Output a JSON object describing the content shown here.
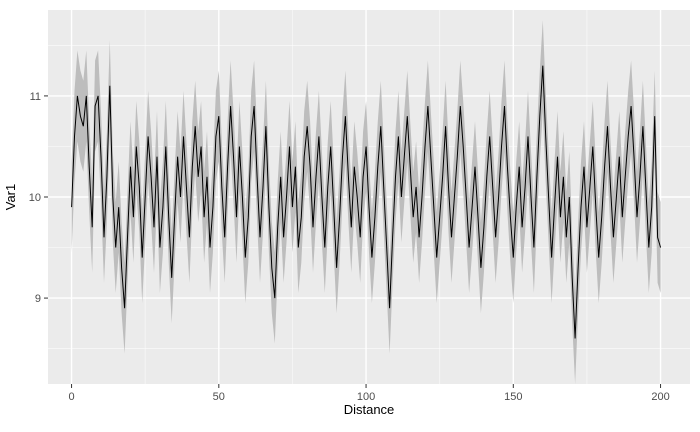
{
  "chart_data": {
    "type": "line",
    "title": "",
    "xlabel": "Distance",
    "ylabel": "Var1",
    "xlim": [
      -8,
      210
    ],
    "ylim": [
      8.15,
      11.85
    ],
    "x_ticks": [
      0,
      50,
      100,
      150,
      200
    ],
    "y_ticks": [
      9,
      10,
      11
    ],
    "x_minor_ticks": [
      25,
      75,
      125,
      175
    ],
    "y_minor_ticks": [
      8.5,
      9.5,
      10.5,
      11.5
    ],
    "x_start": 0,
    "x_step": 1,
    "ribbon_halfwidth": 0.45,
    "legend": "none",
    "grid": "on",
    "series": [
      {
        "name": "Var1",
        "values": [
          9.9,
          10.6,
          11.0,
          10.8,
          10.7,
          11.0,
          10.3,
          9.7,
          10.9,
          11.0,
          10.4,
          9.6,
          10.2,
          11.1,
          10.0,
          9.5,
          9.9,
          9.3,
          8.9,
          9.6,
          10.3,
          9.8,
          10.5,
          10.1,
          9.4,
          10.0,
          10.6,
          10.2,
          9.7,
          10.4,
          9.5,
          9.9,
          10.5,
          9.8,
          9.2,
          9.8,
          10.4,
          10.0,
          10.6,
          10.1,
          9.6,
          10.3,
          10.7,
          10.2,
          10.5,
          9.8,
          10.2,
          9.5,
          9.9,
          10.6,
          10.8,
          10.1,
          9.6,
          10.3,
          10.9,
          10.4,
          9.8,
          10.5,
          10.0,
          9.4,
          9.8,
          10.6,
          10.9,
          10.2,
          9.6,
          10.1,
          10.7,
          9.9,
          9.3,
          9.0,
          9.7,
          10.2,
          9.6,
          10.0,
          10.5,
          9.9,
          10.3,
          9.5,
          9.8,
          10.4,
          10.7,
          10.3,
          9.7,
          10.2,
          10.6,
          10.0,
          9.5,
          10.1,
          10.5,
          9.9,
          9.3,
          9.8,
          10.4,
          10.8,
          10.2,
          9.7,
          10.3,
          10.0,
          9.6,
          10.2,
          10.5,
          9.9,
          9.4,
          9.8,
          10.3,
          10.7,
          10.1,
          9.5,
          8.9,
          9.6,
          10.2,
          10.6,
          10.0,
          10.4,
          10.8,
          10.3,
          9.8,
          10.1,
          9.6,
          10.0,
          10.5,
          10.9,
          10.4,
          9.9,
          9.4,
          9.8,
          10.2,
          10.7,
          10.1,
          9.6,
          10.0,
          10.4,
          10.9,
          10.5,
          10.0,
          9.5,
          9.9,
          10.3,
          9.8,
          9.3,
          9.7,
          10.2,
          10.6,
          10.1,
          9.6,
          10.0,
          10.5,
          10.9,
          10.3,
          9.8,
          9.4,
          9.9,
          10.3,
          9.7,
          10.1,
          10.6,
          10.0,
          9.5,
          10.2,
          10.8,
          11.3,
          10.6,
          10.0,
          9.4,
          9.9,
          10.4,
          9.8,
          10.2,
          9.6,
          10.0,
          9.2,
          8.6,
          9.3,
          9.9,
          10.3,
          9.7,
          10.1,
          10.5,
          9.9,
          9.4,
          9.8,
          10.3,
          10.7,
          10.1,
          9.6,
          10.0,
          10.4,
          9.8,
          10.2,
          10.6,
          10.9,
          10.4,
          9.8,
          10.2,
          10.7,
          10.1,
          9.5,
          9.9,
          10.8,
          9.6,
          9.5
        ]
      }
    ],
    "colors": {
      "line": "#000000",
      "ribbon": "#BDBDBD",
      "panel_bg": "#EBEBEB",
      "grid_major": "#FFFFFF",
      "grid_minor": "#FFFFFF",
      "tick_label": "#4D4D4D",
      "axis_title": "#000000",
      "tick_mark": "#333333",
      "page_bg": "#FFFFFF"
    }
  }
}
